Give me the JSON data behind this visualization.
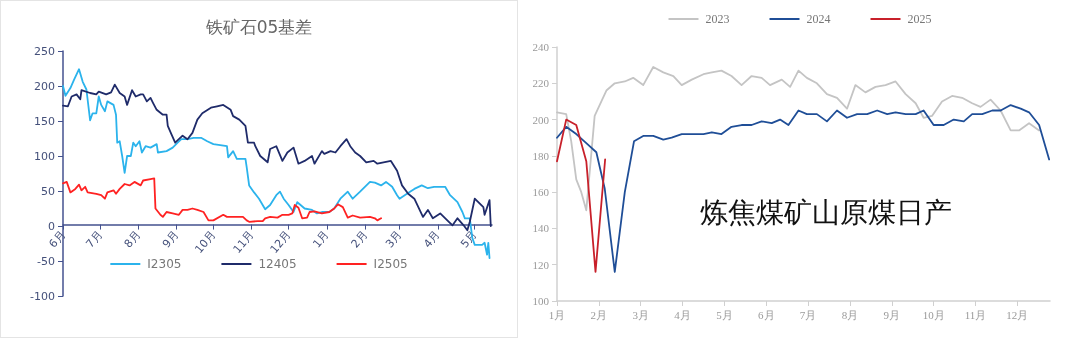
{
  "chart_data": [
    {
      "type": "line",
      "title": "铁矿石05基差",
      "legend": "bottom",
      "grid": false,
      "marker": "none",
      "line_style": "solid",
      "xlim": [
        "2022-06-01",
        "2023-05-15"
      ],
      "xticks": [
        {
          "value": "2022-06-01",
          "label": "6月"
        },
        {
          "value": "2022-07-01",
          "label": "7月"
        },
        {
          "value": "2022-08-01",
          "label": "8月"
        },
        {
          "value": "2022-09-01",
          "label": "9月"
        },
        {
          "value": "2022-10-01",
          "label": "10月"
        },
        {
          "value": "2022-11-01",
          "label": "11月"
        },
        {
          "value": "2022-12-01",
          "label": "12月"
        },
        {
          "value": "2023-01-01",
          "label": "1月"
        },
        {
          "value": "2023-02-01",
          "label": "2月"
        },
        {
          "value": "2023-03-01",
          "label": "3月"
        },
        {
          "value": "2023-04-01",
          "label": "4月"
        },
        {
          "value": "2023-05-01",
          "label": "5月"
        }
      ],
      "ylim": [
        -100,
        250
      ],
      "yticks": [
        -100,
        -50,
        0,
        50,
        100,
        150,
        200,
        250
      ],
      "series": [
        {
          "name": "I2305",
          "color": "#2bb3ec",
          "x": [
            "2022-06-01",
            "2022-06-03",
            "2022-06-07",
            "2022-06-10",
            "2022-06-14",
            "2022-06-17",
            "2022-06-20",
            "2022-06-23",
            "2022-06-25",
            "2022-06-28",
            "2022-06-30",
            "2022-07-02",
            "2022-07-05",
            "2022-07-07",
            "2022-07-12",
            "2022-07-14",
            "2022-07-15",
            "2022-07-17",
            "2022-07-19",
            "2022-07-21",
            "2022-07-23",
            "2022-07-26",
            "2022-07-28",
            "2022-07-30",
            "2022-08-02",
            "2022-08-04",
            "2022-08-07",
            "2022-08-11",
            "2022-08-16",
            "2022-08-17",
            "2022-08-24",
            "2022-08-29",
            "2022-09-02",
            "2022-09-05",
            "2022-09-10",
            "2022-09-15",
            "2022-09-21",
            "2022-09-26",
            "2022-10-01",
            "2022-10-12",
            "2022-10-13",
            "2022-10-17",
            "2022-10-20",
            "2022-10-27",
            "2022-10-28",
            "2022-10-30",
            "2022-11-03",
            "2022-11-07",
            "2022-11-12",
            "2022-11-16",
            "2022-11-21",
            "2022-11-24",
            "2022-11-27",
            "2022-12-01",
            "2022-12-05",
            "2022-12-08",
            "2022-12-10",
            "2022-12-14",
            "2022-12-20",
            "2022-12-24",
            "2022-12-28",
            "2023-01-03",
            "2023-01-07",
            "2023-01-12",
            "2023-01-18",
            "2023-01-22",
            "2023-01-28",
            "2023-02-05",
            "2023-02-09",
            "2023-02-14",
            "2023-02-18",
            "2023-02-23",
            "2023-02-27",
            "2023-03-01",
            "2023-03-07",
            "2023-03-13",
            "2023-03-19",
            "2023-03-24",
            "2023-03-29",
            "2023-04-07",
            "2023-04-11",
            "2023-04-17",
            "2023-04-21",
            "2023-04-23",
            "2023-04-27",
            "2023-04-29",
            "2023-05-01",
            "2023-05-07",
            "2023-05-09",
            "2023-05-11",
            "2023-05-12",
            "2023-05-13"
          ],
          "values": [
            200,
            186,
            197,
            209,
            224,
            206,
            195,
            151,
            161,
            161,
            185,
            173,
            164,
            178,
            173,
            159,
            119,
            121,
            100,
            76,
            100,
            100,
            119,
            114,
            121,
            105,
            114,
            112,
            117,
            105,
            107,
            112,
            119,
            124,
            124,
            126,
            126,
            121,
            117,
            114,
            98,
            107,
            96,
            96,
            84,
            58,
            48,
            39,
            24,
            30,
            44,
            49,
            39,
            30,
            20,
            34,
            31,
            25,
            23,
            18,
            20,
            20,
            25,
            39,
            49,
            39,
            49,
            63,
            62,
            58,
            63,
            56,
            44,
            39,
            46,
            53,
            58,
            54,
            56,
            56,
            44,
            34,
            20,
            11,
            11,
            -17,
            -27,
            -27,
            -24,
            -41,
            -24,
            -46
          ]
        },
        {
          "name": "12405",
          "color": "#1f2b6a",
          "x": [
            "2022-06-01",
            "2022-06-05",
            "2022-06-08",
            "2022-06-12",
            "2022-06-15",
            "2022-06-16",
            "2022-06-23",
            "2022-06-28",
            "2022-06-30",
            "2022-07-06",
            "2022-07-10",
            "2022-07-13",
            "2022-07-17",
            "2022-07-21",
            "2022-07-23",
            "2022-07-27",
            "2022-07-30",
            "2022-08-03",
            "2022-08-05",
            "2022-08-08",
            "2022-08-11",
            "2022-08-13",
            "2022-08-16",
            "2022-08-21",
            "2022-08-24",
            "2022-08-25",
            "2022-08-28",
            "2022-08-31",
            "2022-09-06",
            "2022-09-10",
            "2022-09-14",
            "2022-09-18",
            "2022-09-22",
            "2022-09-29",
            "2022-10-04",
            "2022-10-09",
            "2022-10-15",
            "2022-10-17",
            "2022-10-22",
            "2022-10-27",
            "2022-10-29",
            "2022-11-03",
            "2022-11-04",
            "2022-11-08",
            "2022-11-14",
            "2022-11-16",
            "2022-11-21",
            "2022-11-26",
            "2022-11-30",
            "2022-12-05",
            "2022-12-09",
            "2022-12-14",
            "2022-12-20",
            "2022-12-22",
            "2022-12-28",
            "2022-12-30",
            "2023-01-04",
            "2023-01-08",
            "2023-01-12",
            "2023-01-17",
            "2023-01-20",
            "2023-01-24",
            "2023-01-28",
            "2023-02-02",
            "2023-02-08",
            "2023-02-11",
            "2023-02-16",
            "2023-02-22",
            "2023-02-27",
            "2023-03-03",
            "2023-03-08",
            "2023-03-13",
            "2023-03-20",
            "2023-03-24",
            "2023-03-28",
            "2023-04-03",
            "2023-04-10",
            "2023-04-13",
            "2023-04-17",
            "2023-04-22",
            "2023-04-25",
            "2023-04-27",
            "2023-05-01",
            "2023-05-08",
            "2023-05-09",
            "2023-05-13",
            "2023-05-14"
          ],
          "values": [
            172,
            171,
            185,
            188,
            181,
            194,
            190,
            188,
            192,
            188,
            191,
            202,
            190,
            185,
            173,
            194,
            185,
            188,
            188,
            178,
            183,
            176,
            166,
            159,
            159,
            143,
            131,
            119,
            129,
            124,
            133,
            152,
            161,
            169,
            171,
            173,
            166,
            157,
            152,
            143,
            119,
            119,
            114,
            100,
            91,
            110,
            114,
            93,
            105,
            112,
            89,
            93,
            100,
            89,
            107,
            103,
            107,
            105,
            114,
            124,
            114,
            105,
            100,
            91,
            93,
            89,
            91,
            93,
            79,
            58,
            46,
            39,
            13,
            23,
            11,
            18,
            6,
            1,
            11,
            1,
            -6,
            6,
            39,
            27,
            16,
            37,
            0
          ]
        },
        {
          "name": "I2505",
          "color": "#ff2222",
          "x": [
            "2022-06-01",
            "2022-06-04",
            "2022-06-07",
            "2022-06-11",
            "2022-06-14",
            "2022-06-16",
            "2022-06-19",
            "2022-06-21",
            "2022-06-28",
            "2022-07-02",
            "2022-07-05",
            "2022-07-07",
            "2022-07-12",
            "2022-07-14",
            "2022-07-17",
            "2022-07-21",
            "2022-07-25",
            "2022-07-29",
            "2022-08-03",
            "2022-08-05",
            "2022-08-11",
            "2022-08-14",
            "2022-08-15",
            "2022-08-19",
            "2022-08-21",
            "2022-08-24",
            "2022-08-29",
            "2022-09-03",
            "2022-09-06",
            "2022-09-10",
            "2022-09-14",
            "2022-09-18",
            "2022-09-23",
            "2022-09-27",
            "2022-10-01",
            "2022-10-09",
            "2022-10-12",
            "2022-10-20",
            "2022-10-25",
            "2022-10-28",
            "2022-10-30",
            "2022-11-06",
            "2022-11-10",
            "2022-11-12",
            "2022-11-16",
            "2022-11-22",
            "2022-11-26",
            "2022-12-01",
            "2022-12-04",
            "2022-12-06",
            "2022-12-09",
            "2022-12-12",
            "2022-12-16",
            "2022-12-18",
            "2022-12-22",
            "2022-12-28",
            "2023-01-03",
            "2023-01-07",
            "2023-01-10",
            "2023-01-14",
            "2023-01-18",
            "2023-01-22",
            "2023-01-28",
            "2023-02-05",
            "2023-02-09",
            "2023-02-11",
            "2023-02-14"
          ],
          "values": [
            61,
            63,
            48,
            53,
            59,
            51,
            56,
            48,
            46,
            44,
            39,
            48,
            51,
            46,
            53,
            60,
            58,
            63,
            58,
            65,
            67,
            68,
            25,
            16,
            13,
            20,
            18,
            16,
            23,
            23,
            25,
            23,
            20,
            8,
            8,
            16,
            13,
            13,
            13,
            8,
            6,
            7,
            7,
            11,
            13,
            12,
            16,
            16,
            18,
            30,
            26,
            11,
            12,
            20,
            21,
            18,
            20,
            25,
            31,
            27,
            12,
            15,
            12,
            13,
            11,
            8,
            11
          ]
        }
      ]
    },
    {
      "type": "line",
      "annotations": [
        "炼焦煤矿山原煤日产"
      ],
      "legend": "top",
      "grid": false,
      "marker": "none",
      "line_style": "solid",
      "xlim": [
        1,
        12.78
      ],
      "xticks": [
        {
          "value": 1,
          "label": "1月"
        },
        {
          "value": 2,
          "label": "2月"
        },
        {
          "value": 3,
          "label": "3月"
        },
        {
          "value": 4,
          "label": "4月"
        },
        {
          "value": 5,
          "label": "5月"
        },
        {
          "value": 6,
          "label": "6月"
        },
        {
          "value": 7,
          "label": "7月"
        },
        {
          "value": 8,
          "label": "8月"
        },
        {
          "value": 9,
          "label": "9月"
        },
        {
          "value": 10,
          "label": "10月"
        },
        {
          "value": 11,
          "label": "11月"
        },
        {
          "value": 12,
          "label": "12月"
        }
      ],
      "ylim": [
        100,
        240
      ],
      "yticks": [
        100,
        120,
        140,
        160,
        180,
        200,
        220,
        240
      ],
      "series": [
        {
          "name": "2023",
          "color": "#c4c4c4",
          "x": [
            1.0,
            1.22,
            1.34,
            1.46,
            1.58,
            1.7,
            1.9,
            2.06,
            2.18,
            2.38,
            2.62,
            2.82,
            3.06,
            3.3,
            3.54,
            3.78,
            3.98,
            4.22,
            4.5,
            4.7,
            4.93,
            5.17,
            5.41,
            5.65,
            5.89,
            6.09,
            6.37,
            6.57,
            6.77,
            6.97,
            7.21,
            7.45,
            7.69,
            7.93,
            8.13,
            8.37,
            8.61,
            8.85,
            9.09,
            9.33,
            9.57,
            9.76,
            9.96,
            10.2,
            10.44,
            10.68,
            10.92,
            11.12,
            11.36,
            11.6,
            11.84,
            12.04,
            12.28,
            12.52
          ],
          "values": [
            204,
            203,
            188,
            167,
            160,
            150,
            202,
            210,
            216,
            220,
            221,
            223,
            219,
            229,
            226,
            224,
            219,
            222,
            225,
            226,
            227,
            224,
            219,
            224,
            223,
            219,
            222,
            218,
            227,
            223,
            220,
            214,
            212,
            206,
            219,
            215,
            218,
            219,
            221,
            214,
            209,
            201,
            202,
            210,
            213,
            212,
            209,
            207,
            211,
            205,
            194,
            194,
            198,
            194
          ]
        },
        {
          "name": "2024",
          "color": "#1f4e97",
          "x": [
            1.0,
            1.22,
            1.46,
            1.7,
            1.94,
            2.14,
            2.38,
            2.62,
            2.84,
            3.06,
            3.3,
            3.54,
            3.74,
            3.98,
            4.22,
            4.5,
            4.7,
            4.93,
            5.17,
            5.41,
            5.65,
            5.89,
            6.13,
            6.33,
            6.53,
            6.77,
            6.97,
            7.21,
            7.45,
            7.69,
            7.93,
            8.17,
            8.41,
            8.65,
            8.89,
            9.09,
            9.33,
            9.57,
            9.76,
            10.0,
            10.24,
            10.48,
            10.72,
            10.92,
            11.16,
            11.4,
            11.6,
            11.84,
            12.08,
            12.28,
            12.52,
            12.76
          ],
          "values": [
            190,
            196,
            192,
            187,
            182,
            162,
            116,
            160,
            188,
            191,
            191,
            189,
            190,
            192,
            192,
            192,
            193,
            192,
            196,
            197,
            197,
            199,
            198,
            200,
            197,
            205,
            203,
            203,
            199,
            205,
            201,
            203,
            203,
            205,
            203,
            204,
            203,
            203,
            205,
            197,
            197,
            200,
            199,
            203,
            203,
            205,
            205,
            208,
            206,
            204,
            197,
            178
          ]
        },
        {
          "name": "2025",
          "color": "#c8202a",
          "x": [
            1.0,
            1.22,
            1.46,
            1.7,
            1.92,
            2.15
          ],
          "values": [
            177,
            200,
            197,
            177,
            116,
            178
          ]
        }
      ]
    }
  ]
}
